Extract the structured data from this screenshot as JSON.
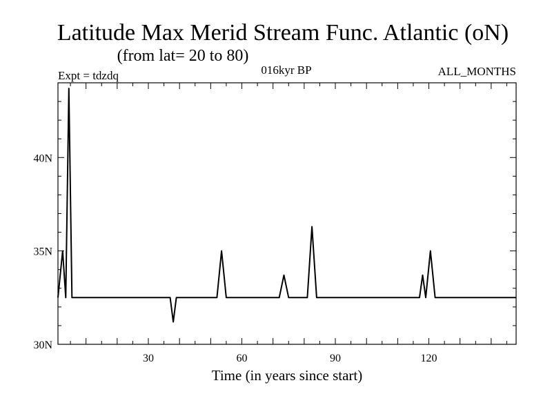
{
  "chart_data": {
    "type": "line",
    "title": "Latitude Max Merid Stream Func. Atlantic (oN)",
    "subtitle": "(from lat= 20 to 80)",
    "header_left": "Expt = tdzdq",
    "header_center": "016kyr BP",
    "header_right": "ALL_MONTHS",
    "xlabel": "Time (in years since start)",
    "ylabel": "",
    "xlim": [
      1,
      148
    ],
    "ylim": [
      30,
      44
    ],
    "x_ticks": [
      30,
      60,
      90,
      120
    ],
    "y_ticks": [
      {
        "value": 30,
        "label": "30N"
      },
      {
        "value": 35,
        "label": "35N"
      },
      {
        "value": 40,
        "label": "40N"
      }
    ],
    "grid": false,
    "series": [
      {
        "x": [
          1,
          2.5,
          3.5,
          4.5,
          5.5,
          6.5,
          37,
          38,
          39,
          50,
          52,
          53.5,
          55,
          72,
          73.5,
          75,
          81,
          82.5,
          84,
          117,
          118,
          119,
          120.5,
          122,
          148
        ],
        "y": [
          32.5,
          35,
          32.5,
          43.7,
          32.5,
          32.5,
          32.5,
          31.2,
          32.5,
          32.5,
          32.5,
          35,
          32.5,
          32.5,
          33.7,
          32.5,
          32.5,
          36.3,
          32.5,
          32.5,
          33.7,
          32.5,
          35,
          32.5,
          32.5
        ]
      }
    ]
  }
}
